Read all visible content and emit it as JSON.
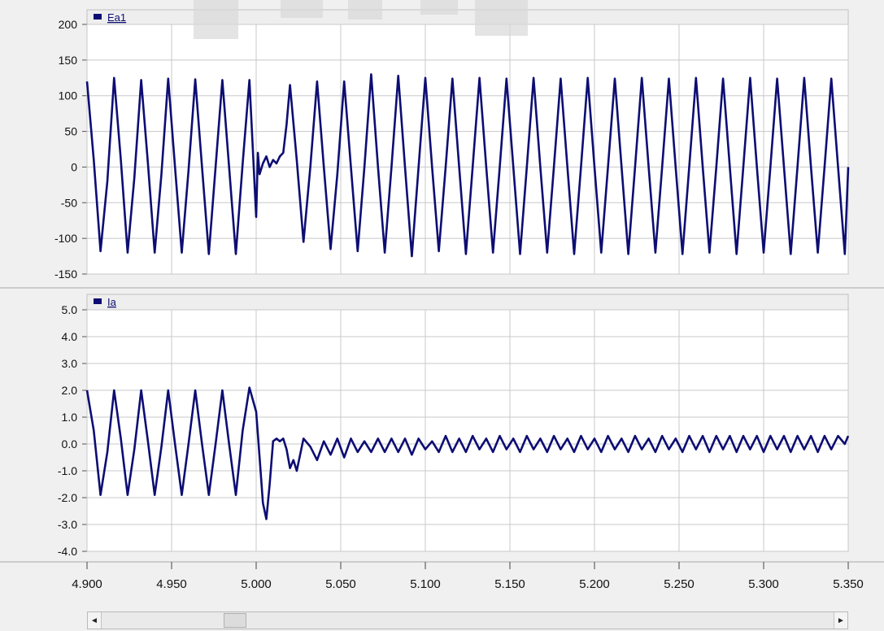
{
  "chart_data": [
    {
      "type": "line",
      "legend_placement": "top-left",
      "grid": true,
      "series": [
        {
          "name": "Ea1",
          "color": "#0d0d73",
          "description_of_points": "sampled waveform, time in seconds vs value",
          "x": [
            4.9,
            4.904,
            4.908,
            4.912,
            4.916,
            4.92,
            4.924,
            4.928,
            4.932,
            4.936,
            4.94,
            4.944,
            4.948,
            4.952,
            4.956,
            4.96,
            4.964,
            4.968,
            4.972,
            4.976,
            4.98,
            4.984,
            4.988,
            4.992,
            4.996,
            5.0,
            5.001,
            5.002,
            5.004,
            5.006,
            5.008,
            5.01,
            5.012,
            5.014,
            5.016,
            5.018,
            5.02,
            5.024,
            5.028,
            5.032,
            5.036,
            5.04,
            5.044,
            5.048,
            5.052,
            5.056,
            5.06,
            5.064,
            5.068,
            5.072,
            5.076,
            5.08,
            5.084,
            5.088,
            5.092,
            5.096,
            5.1,
            5.104,
            5.108,
            5.112,
            5.116,
            5.12,
            5.124,
            5.128,
            5.132,
            5.136,
            5.14,
            5.144,
            5.148,
            5.152,
            5.156,
            5.16,
            5.164,
            5.168,
            5.172,
            5.176,
            5.18,
            5.184,
            5.188,
            5.192,
            5.196,
            5.2,
            5.204,
            5.208,
            5.212,
            5.216,
            5.22,
            5.224,
            5.228,
            5.232,
            5.236,
            5.24,
            5.244,
            5.248,
            5.252,
            5.256,
            5.26,
            5.264,
            5.268,
            5.272,
            5.276,
            5.28,
            5.284,
            5.288,
            5.292,
            5.296,
            5.3,
            5.304,
            5.308,
            5.312,
            5.316,
            5.32,
            5.324,
            5.328,
            5.332,
            5.336,
            5.34,
            5.344,
            5.348,
            5.35
          ],
          "y": [
            120,
            10,
            -118,
            -20,
            125,
            10,
            -120,
            -15,
            122,
            5,
            -120,
            -10,
            124,
            0,
            -120,
            -5,
            123,
            0,
            -122,
            0,
            122,
            0,
            -122,
            5,
            122,
            -70,
            20,
            -10,
            5,
            15,
            0,
            10,
            5,
            15,
            20,
            60,
            115,
            10,
            -105,
            0,
            120,
            0,
            -115,
            -10,
            120,
            0,
            -118,
            0,
            130,
            0,
            -120,
            0,
            128,
            0,
            -125,
            0,
            125,
            0,
            -118,
            0,
            124,
            0,
            -122,
            0,
            125,
            0,
            -120,
            0,
            124,
            0,
            -122,
            0,
            125,
            0,
            -120,
            0,
            124,
            0,
            -122,
            0,
            125,
            0,
            -120,
            0,
            124,
            0,
            -122,
            0,
            125,
            0,
            -120,
            0,
            124,
            0,
            -122,
            0,
            125,
            0,
            -120,
            0,
            124,
            0,
            -122,
            0,
            125,
            0,
            -120,
            0,
            124,
            0,
            -122,
            0,
            125,
            0,
            -120,
            0,
            124,
            0,
            -122,
            0
          ]
        }
      ],
      "ylim": [
        -150,
        200
      ],
      "yticks": [
        "200",
        "150",
        "100",
        "50",
        "0",
        "-50",
        "-100",
        "-150"
      ],
      "xlim": [
        4.9,
        5.35
      ]
    },
    {
      "type": "line",
      "legend_placement": "top-left",
      "grid": true,
      "series": [
        {
          "name": "Ia",
          "color": "#0d0d73",
          "x": [
            4.9,
            4.904,
            4.908,
            4.912,
            4.916,
            4.92,
            4.924,
            4.928,
            4.932,
            4.936,
            4.94,
            4.944,
            4.948,
            4.952,
            4.956,
            4.96,
            4.964,
            4.968,
            4.972,
            4.976,
            4.98,
            4.984,
            4.988,
            4.992,
            4.996,
            5.0,
            5.002,
            5.004,
            5.006,
            5.008,
            5.01,
            5.012,
            5.014,
            5.016,
            5.018,
            5.02,
            5.022,
            5.024,
            5.028,
            5.032,
            5.036,
            5.04,
            5.044,
            5.048,
            5.052,
            5.056,
            5.06,
            5.064,
            5.068,
            5.072,
            5.076,
            5.08,
            5.084,
            5.088,
            5.092,
            5.096,
            5.1,
            5.104,
            5.108,
            5.112,
            5.116,
            5.12,
            5.124,
            5.128,
            5.132,
            5.136,
            5.14,
            5.144,
            5.148,
            5.152,
            5.156,
            5.16,
            5.164,
            5.168,
            5.172,
            5.176,
            5.18,
            5.184,
            5.188,
            5.192,
            5.196,
            5.2,
            5.204,
            5.208,
            5.212,
            5.216,
            5.22,
            5.224,
            5.228,
            5.232,
            5.236,
            5.24,
            5.244,
            5.248,
            5.252,
            5.256,
            5.26,
            5.264,
            5.268,
            5.272,
            5.276,
            5.28,
            5.284,
            5.288,
            5.292,
            5.296,
            5.3,
            5.304,
            5.308,
            5.312,
            5.316,
            5.32,
            5.324,
            5.328,
            5.332,
            5.336,
            5.34,
            5.344,
            5.348,
            5.35
          ],
          "y": [
            2.0,
            0.5,
            -1.9,
            -0.3,
            2.0,
            0.2,
            -1.9,
            -0.2,
            2.0,
            0.1,
            -1.9,
            -0.1,
            2.0,
            0.0,
            -1.9,
            0.0,
            2.0,
            0.0,
            -1.9,
            0.0,
            2.0,
            0.0,
            -1.9,
            0.5,
            2.1,
            1.2,
            -0.5,
            -2.2,
            -2.8,
            -1.5,
            0.1,
            0.2,
            0.1,
            0.2,
            -0.2,
            -0.9,
            -0.6,
            -1.0,
            0.2,
            -0.1,
            -0.6,
            0.1,
            -0.4,
            0.2,
            -0.5,
            0.2,
            -0.3,
            0.1,
            -0.3,
            0.2,
            -0.3,
            0.2,
            -0.3,
            0.2,
            -0.4,
            0.2,
            -0.2,
            0.1,
            -0.3,
            0.3,
            -0.3,
            0.2,
            -0.3,
            0.3,
            -0.2,
            0.2,
            -0.3,
            0.3,
            -0.2,
            0.2,
            -0.3,
            0.3,
            -0.2,
            0.2,
            -0.3,
            0.3,
            -0.2,
            0.2,
            -0.3,
            0.3,
            -0.2,
            0.2,
            -0.3,
            0.3,
            -0.2,
            0.2,
            -0.3,
            0.3,
            -0.2,
            0.2,
            -0.3,
            0.3,
            -0.2,
            0.2,
            -0.3,
            0.3,
            -0.2,
            0.3,
            -0.3,
            0.3,
            -0.2,
            0.3,
            -0.3,
            0.3,
            -0.2,
            0.3,
            -0.3,
            0.3,
            -0.2,
            0.3,
            -0.3,
            0.3,
            -0.2,
            0.3,
            -0.3,
            0.3,
            -0.2,
            0.3,
            0.0,
            0.3
          ]
        }
      ],
      "ylim": [
        -4.0,
        5.0
      ],
      "yticks": [
        "5.0",
        "4.0",
        "3.0",
        "2.0",
        "1.0",
        "0.0",
        "-1.0",
        "-2.0",
        "-3.0",
        "-4.0"
      ],
      "xlim": [
        4.9,
        5.35
      ]
    }
  ],
  "shared_x_axis": {
    "ticks": [
      "4.900",
      "4.950",
      "5.000",
      "5.050",
      "5.100",
      "5.150",
      "5.200",
      "5.250",
      "5.300",
      "5.350"
    ],
    "tick_values": [
      4.9,
      4.95,
      5.0,
      5.05,
      5.1,
      5.15,
      5.2,
      5.25,
      5.3,
      5.35
    ]
  },
  "scrollbar": {
    "left_arrow": "◄",
    "right_arrow": "►"
  },
  "colors": {
    "line": "#0d0d73",
    "grid": "#c8c8c8",
    "plot_bg": "#ffffff",
    "legend_bar_bg": "#eeeeee"
  }
}
